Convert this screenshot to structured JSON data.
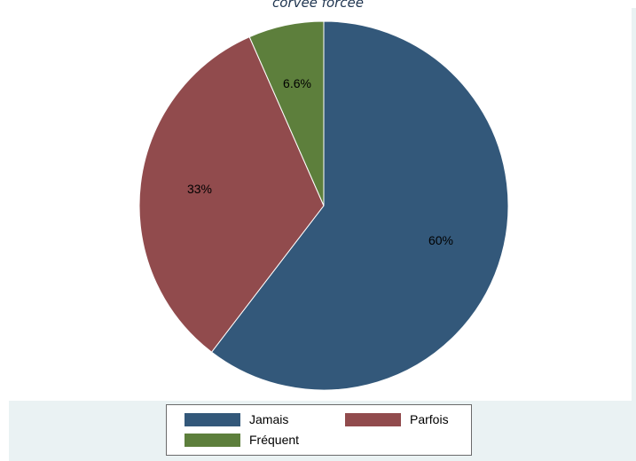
{
  "title": "corvée forcée",
  "chart_data": {
    "type": "pie",
    "title": "corvée forcée",
    "start": "12 o'clock",
    "direction": "clockwise",
    "slices": [
      {
        "name": "Jamais",
        "value": 60.4,
        "label": "60%",
        "color": "#33587a"
      },
      {
        "name": "Parfois",
        "value": 33.0,
        "label": "33%",
        "color": "#914b4d"
      },
      {
        "name": "Fréquent",
        "value": 6.6,
        "label": "6.6%",
        "color": "#5d7f3c"
      }
    ],
    "legend_position": "bottom"
  },
  "legend": {
    "items": [
      {
        "label": "Jamais",
        "color": "#33587a"
      },
      {
        "label": "Parfois",
        "color": "#914b4d"
      },
      {
        "label": "Fréquent",
        "color": "#5d7f3c"
      }
    ]
  }
}
